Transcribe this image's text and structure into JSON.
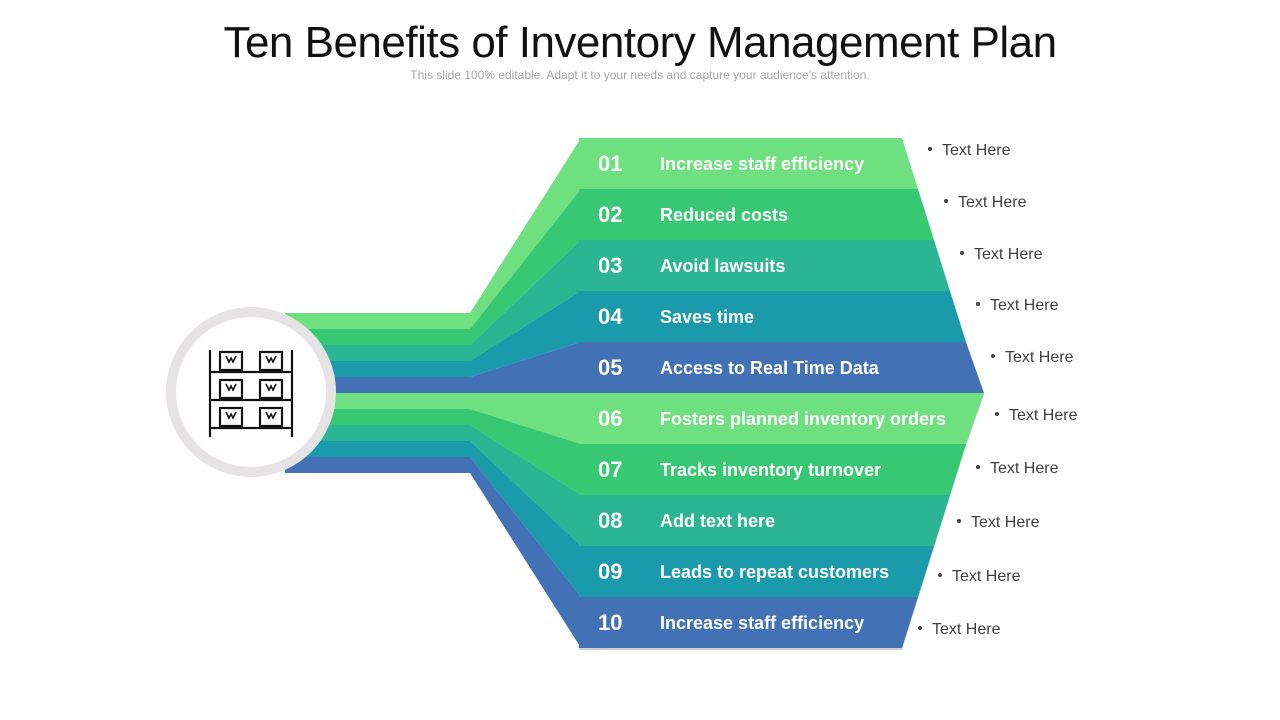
{
  "title": "Ten Benefits of Inventory Management Plan",
  "subtitle": "This slide 100% editable. Adapt it to your needs and capture your audience’s attention.",
  "hub": {
    "icon": "warehouse-shelf-icon"
  },
  "colors": [
    "#6ee07f",
    "#38c873",
    "#2bb592",
    "#1a9aaa",
    "#4272b5"
  ],
  "items": [
    {
      "number": "01",
      "label": "Increase staff efficiency",
      "note": "Text Here"
    },
    {
      "number": "02",
      "label": "Reduced costs",
      "note": "Text Here"
    },
    {
      "number": "03",
      "label": "Avoid lawsuits",
      "note": "Text Here"
    },
    {
      "number": "04",
      "label": "Saves time",
      "note": "Text Here"
    },
    {
      "number": "05",
      "label": "Access to Real Time Data",
      "note": "Text Here"
    },
    {
      "number": "06",
      "label": "Fosters planned inventory orders",
      "note": "Text Here"
    },
    {
      "number": "07",
      "label": "Tracks inventory turnover",
      "note": "Text Here"
    },
    {
      "number": "08",
      "label": "Add text here",
      "note": "Text Here"
    },
    {
      "number": "09",
      "label": "Leads to repeat customers",
      "note": "Text Here"
    },
    {
      "number": "10",
      "label": "Increase staff efficiency",
      "note": "Text Here"
    }
  ]
}
